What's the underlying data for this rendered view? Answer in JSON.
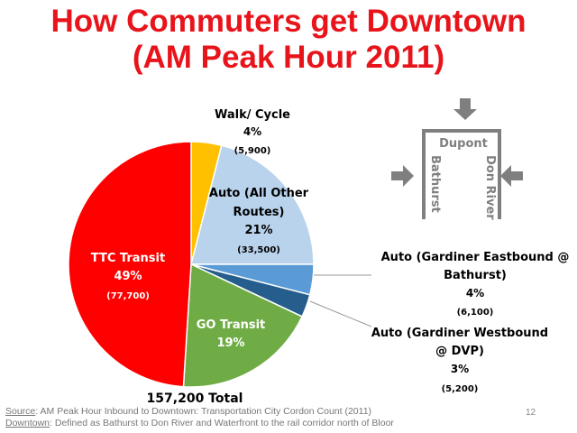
{
  "title_line1": "How Commuters get Downtown",
  "title_line2": "(AM Peak Hour 2011)",
  "chart_data": {
    "type": "pie",
    "start": "top, clockwise",
    "total_label": "157,200 Total",
    "slices": [
      {
        "name": "Walk/ Cycle",
        "percent": 4,
        "pct_label": "4%",
        "count": "(5,900)",
        "color": "#ffc000"
      },
      {
        "name": "Auto (All Other Routes)",
        "name_l1": "Auto (All Other",
        "name_l2": "Routes)",
        "percent": 21,
        "pct_label": "21%",
        "count": "(33,500)",
        "color": "#b9d3ec"
      },
      {
        "name": "Auto (Gardiner Eastbound @ Bathurst)",
        "name_l1": "Auto (Gardiner Eastbound @",
        "name_l2": "Bathurst)",
        "percent": 4,
        "pct_label": "4%",
        "count": "(6,100)",
        "color": "#5b9bd5"
      },
      {
        "name": "Auto (Gardiner Westbound @ DVP)",
        "name_l1": "Auto (Gardiner Westbound",
        "name_l2": "@ DVP)",
        "percent": 3,
        "pct_label": "3%",
        "count": "(5,200)",
        "color": "#255d8c"
      },
      {
        "name": "GO Transit",
        "percent": 19,
        "pct_label": "19%",
        "count": "",
        "color": "#6fac45"
      },
      {
        "name": "TTC Transit",
        "percent": 49,
        "pct_label": "49%",
        "count": "(77,700)",
        "color": "#ff0000"
      }
    ]
  },
  "diagram": {
    "north": "Dupont",
    "west": "Bathurst",
    "east": "Don River",
    "color": "#7f7f7f"
  },
  "footer": {
    "source_label": "Source",
    "source_text": ": AM Peak Hour Inbound to Downtown: Transportation City Cordon Count (2011)",
    "downtown_label": "Downtown",
    "downtown_text": ":  Defined as Bathurst to Don River and Waterfront to the rail corridor north of Bloor",
    "page_number": "12"
  }
}
